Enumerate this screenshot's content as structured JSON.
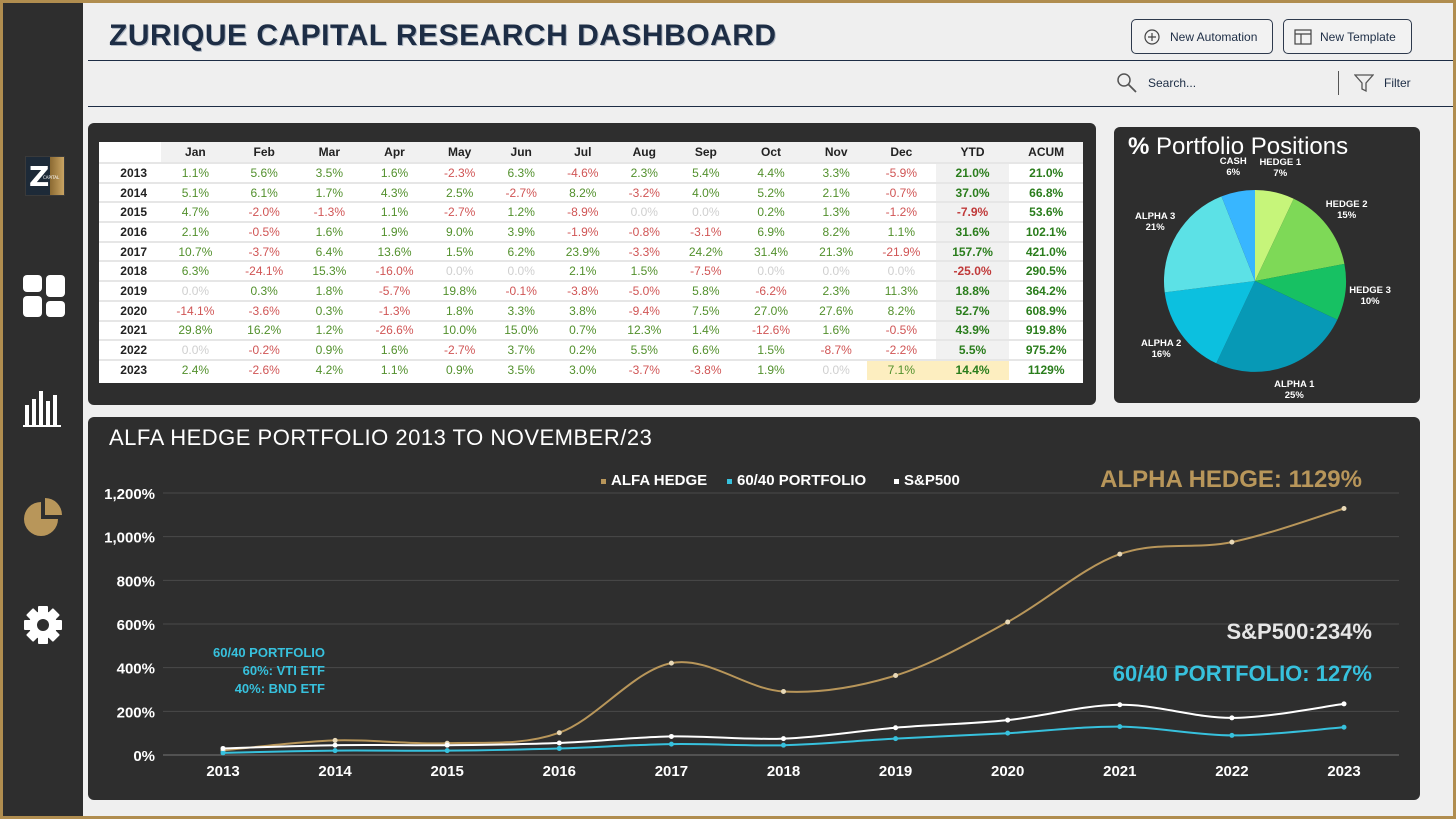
{
  "header": {
    "title": "ZURIQUE CAPITAL RESEARCH DASHBOARD",
    "new_automation": "New Automation",
    "new_template": "New Template",
    "search_placeholder": "Search...",
    "filter": "Filter"
  },
  "sidebar": {
    "logo_letter": "Z",
    "logo_sub": "CAPITAL",
    "icons": [
      "dashboard-icon",
      "bar-chart-icon",
      "pie-chart-icon",
      "gear-icon"
    ]
  },
  "returns_table": {
    "columns": [
      "Jan",
      "Feb",
      "Mar",
      "Apr",
      "May",
      "Jun",
      "Jul",
      "Aug",
      "Sep",
      "Oct",
      "Nov",
      "Dec",
      "YTD",
      "ACUM"
    ],
    "rows": [
      {
        "year": "2013",
        "cells": [
          "1.1%",
          "5.6%",
          "3.5%",
          "1.6%",
          "-2.3%",
          "6.3%",
          "-4.6%",
          "2.3%",
          "5.4%",
          "4.4%",
          "3.3%",
          "-5.9%",
          "21.0%",
          "21.0%"
        ]
      },
      {
        "year": "2014",
        "cells": [
          "5.1%",
          "6.1%",
          "1.7%",
          "4.3%",
          "2.5%",
          "-2.7%",
          "8.2%",
          "-3.2%",
          "4.0%",
          "5.2%",
          "2.1%",
          "-0.7%",
          "37.0%",
          "66.8%"
        ]
      },
      {
        "year": "2015",
        "cells": [
          "4.7%",
          "-2.0%",
          "-1.3%",
          "1.1%",
          "-2.7%",
          "1.2%",
          "-8.9%",
          "0.0%",
          "0.0%",
          "0.2%",
          "1.3%",
          "-1.2%",
          "-7.9%",
          "53.6%"
        ]
      },
      {
        "year": "2016",
        "cells": [
          "2.1%",
          "-0.5%",
          "1.6%",
          "1.9%",
          "9.0%",
          "3.9%",
          "-1.9%",
          "-0.8%",
          "-3.1%",
          "6.9%",
          "8.2%",
          "1.1%",
          "31.6%",
          "102.1%"
        ]
      },
      {
        "year": "2017",
        "cells": [
          "10.7%",
          "-3.7%",
          "6.4%",
          "13.6%",
          "1.5%",
          "6.2%",
          "23.9%",
          "-3.3%",
          "24.2%",
          "31.4%",
          "21.3%",
          "-21.9%",
          "157.7%",
          "421.0%"
        ]
      },
      {
        "year": "2018",
        "cells": [
          "6.3%",
          "-24.1%",
          "15.3%",
          "-16.0%",
          "0.0%",
          "0.0%",
          "2.1%",
          "1.5%",
          "-7.5%",
          "0.0%",
          "0.0%",
          "0.0%",
          "-25.0%",
          "290.5%"
        ]
      },
      {
        "year": "2019",
        "cells": [
          "0.0%",
          "0.3%",
          "1.8%",
          "-5.7%",
          "19.8%",
          "-0.1%",
          "-3.8%",
          "-5.0%",
          "5.8%",
          "-6.2%",
          "2.3%",
          "11.3%",
          "18.8%",
          "364.2%"
        ]
      },
      {
        "year": "2020",
        "cells": [
          "-14.1%",
          "-3.6%",
          "0.3%",
          "-1.3%",
          "1.8%",
          "3.3%",
          "3.8%",
          "-9.4%",
          "7.5%",
          "27.0%",
          "27.6%",
          "8.2%",
          "52.7%",
          "608.9%"
        ]
      },
      {
        "year": "2021",
        "cells": [
          "29.8%",
          "16.2%",
          "1.2%",
          "-26.6%",
          "10.0%",
          "15.0%",
          "0.7%",
          "12.3%",
          "1.4%",
          "-12.6%",
          "1.6%",
          "-0.5%",
          "43.9%",
          "919.8%"
        ]
      },
      {
        "year": "2022",
        "cells": [
          "0.0%",
          "-0.2%",
          "0.9%",
          "1.6%",
          "-2.7%",
          "3.7%",
          "0.2%",
          "5.5%",
          "6.6%",
          "1.5%",
          "-8.7%",
          "-2.2%",
          "5.5%",
          "975.2%"
        ]
      },
      {
        "year": "2023",
        "cells": [
          "2.4%",
          "-2.6%",
          "4.2%",
          "1.1%",
          "0.9%",
          "3.5%",
          "3.0%",
          "-3.7%",
          "-3.8%",
          "1.9%",
          "0.0%",
          "7.1%",
          "14.4%",
          "1129%"
        ]
      }
    ]
  },
  "portfolio_positions": {
    "title_symbol": "%",
    "title_text": "Portfolio Positions",
    "slices": [
      {
        "name": "HEDGE 1",
        "value": 7,
        "label": "7%",
        "color": "#c6f57a"
      },
      {
        "name": "HEDGE 2",
        "value": 15,
        "label": "15%",
        "color": "#7ed957"
      },
      {
        "name": "HEDGE 3",
        "value": 10,
        "label": "10%",
        "color": "#17c163"
      },
      {
        "name": "ALPHA 1",
        "value": 25,
        "label": "25%",
        "color": "#0799b6"
      },
      {
        "name": "ALPHA 2",
        "value": 16,
        "label": "16%",
        "color": "#0cc0df"
      },
      {
        "name": "ALPHA 3",
        "value": 21,
        "label": "21%",
        "color": "#5ce1e6"
      },
      {
        "name": "CASH",
        "value": 6,
        "label": "6%",
        "color": "#38b6ff"
      }
    ]
  },
  "performance": {
    "title": "ALFA HEDGE PORTFOLIO 2013 TO NOVEMBER/23",
    "note_lines": [
      "60/40 PORTFOLIO",
      "60%: VTI ETF",
      "40%: BND ETF"
    ],
    "callouts": {
      "alpha": "ALPHA HEDGE: 1129%",
      "sp500": "S&P500:234%",
      "sixty_forty": "60/40 PORTFOLIO: 127%"
    },
    "colors": {
      "alfa": "#b8965a",
      "sixty": "#37c1dd",
      "sp": "#ffffff"
    }
  },
  "chart_data": {
    "type": "line",
    "x": [
      "2013",
      "2014",
      "2015",
      "2016",
      "2017",
      "2018",
      "2019",
      "2020",
      "2021",
      "2022",
      "2023"
    ],
    "series": [
      {
        "name": "ALFA HEDGE",
        "values": [
          21,
          67,
          54,
          102,
          421,
          291,
          364,
          609,
          920,
          975,
          1129
        ]
      },
      {
        "name": "60/40 PORTFOLIO",
        "values": [
          10,
          20,
          20,
          30,
          50,
          45,
          75,
          100,
          130,
          90,
          127
        ]
      },
      {
        "name": "S&P500",
        "values": [
          30,
          45,
          45,
          55,
          85,
          75,
          125,
          160,
          230,
          170,
          234
        ]
      }
    ],
    "ylim": [
      0,
      1200
    ],
    "yticks": [
      "0%",
      "200%",
      "400%",
      "600%",
      "800%",
      "1,000%",
      "1,200%"
    ],
    "legend": "top-center",
    "grid": true
  }
}
